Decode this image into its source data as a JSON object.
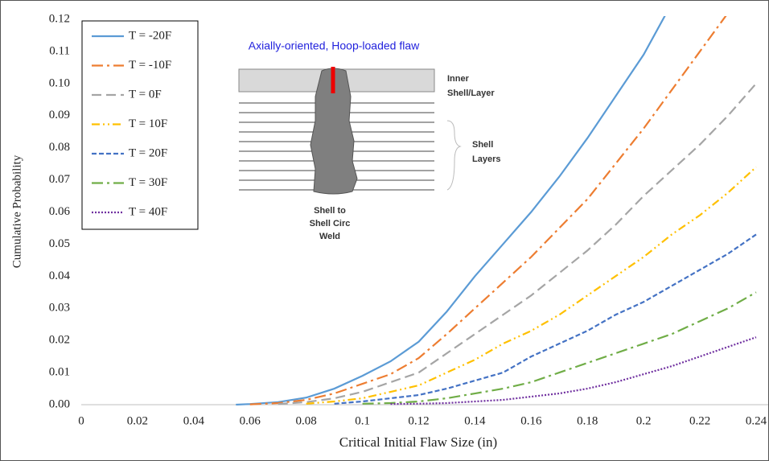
{
  "chart_data": {
    "type": "line",
    "xlabel": "Critical Initial Flaw Size (in)",
    "ylabel": "Cumulative Probability",
    "x": [
      0.055,
      0.06,
      0.07,
      0.08,
      0.09,
      0.1,
      0.11,
      0.12,
      0.13,
      0.14,
      0.15,
      0.16,
      0.17,
      0.18,
      0.19,
      0.2,
      0.21,
      0.22,
      0.23,
      0.24
    ],
    "series": [
      {
        "name": "T = -20F",
        "color": "#5b9bd5",
        "dash": "none",
        "values": [
          0,
          0.0002,
          0.0008,
          0.0022,
          0.005,
          0.009,
          0.0135,
          0.0196,
          0.029,
          0.04,
          0.05,
          0.06,
          0.071,
          0.083,
          0.096,
          0.109,
          0.125,
          null,
          null,
          null
        ]
      },
      {
        "name": "T = -10F",
        "color": "#ed7d31",
        "dash": "14,5,3,5",
        "values": [
          null,
          0.0001,
          0.0005,
          0.0015,
          0.0035,
          0.0065,
          0.0095,
          0.0145,
          0.022,
          0.03,
          0.038,
          0.046,
          0.055,
          0.064,
          0.075,
          0.086,
          0.098,
          0.11,
          0.122,
          null
        ]
      },
      {
        "name": "T = 0F",
        "color": "#a5a5a5",
        "dash": "12,6",
        "values": [
          null,
          null,
          0.0002,
          0.0008,
          0.002,
          0.004,
          0.007,
          0.01,
          0.016,
          0.022,
          0.028,
          0.034,
          0.041,
          0.048,
          0.056,
          0.065,
          0.073,
          0.081,
          0.09,
          0.1
        ]
      },
      {
        "name": "T = 10F",
        "color": "#ffc000",
        "dash": "10,4,2,4,2,4",
        "values": [
          null,
          null,
          null,
          0.0003,
          0.001,
          0.002,
          0.004,
          0.006,
          0.01,
          0.014,
          0.019,
          0.023,
          0.028,
          0.034,
          0.04,
          0.046,
          0.053,
          0.059,
          0.066,
          0.074
        ]
      },
      {
        "name": "T = 20F",
        "color": "#4472c4",
        "dash": "6,3",
        "values": [
          null,
          null,
          null,
          null,
          0.0003,
          0.001,
          0.002,
          0.003,
          0.005,
          0.0075,
          0.01,
          0.015,
          0.019,
          0.023,
          0.028,
          0.032,
          0.037,
          0.042,
          0.047,
          0.053
        ]
      },
      {
        "name": "T = 30F",
        "color": "#70ad47",
        "dash": "14,5,3,5",
        "values": [
          null,
          null,
          null,
          null,
          null,
          0.0003,
          0.0005,
          0.001,
          0.002,
          0.0035,
          0.005,
          0.007,
          0.01,
          0.013,
          0.016,
          0.019,
          0.022,
          0.026,
          0.03,
          0.035
        ]
      },
      {
        "name": "T = 40F",
        "color": "#7030a0",
        "dash": "2,2",
        "values": [
          null,
          null,
          null,
          null,
          null,
          null,
          0.0002,
          0.0003,
          0.0005,
          0.001,
          0.0015,
          0.0025,
          0.0035,
          0.005,
          0.007,
          0.0095,
          0.012,
          0.015,
          0.018,
          0.021
        ]
      }
    ],
    "xlim": [
      0,
      0.24
    ],
    "xticks": [
      0,
      0.02,
      0.04,
      0.06,
      0.08,
      0.1,
      0.12,
      0.14,
      0.16,
      0.18,
      0.2,
      0.22,
      0.24
    ],
    "ylim": [
      0,
      0.12
    ],
    "yticks": [
      {
        "value": 0,
        "label": "0.00"
      },
      0.01,
      0.02,
      0.03,
      0.04,
      0.05,
      0.06,
      0.07,
      0.08,
      0.09,
      {
        "value": 0.1,
        "label": "0.10"
      },
      0.11,
      0.12
    ],
    "grid": false,
    "legend": "upper left",
    "annotations": [
      {
        "lines": [
          "Axially-oriented, Hoop-loaded flaw"
        ]
      },
      {
        "lines": [
          "Inner",
          "Shell/Layer"
        ]
      },
      {
        "lines": [
          "Shell",
          "Layers"
        ]
      },
      {
        "lines": [
          "Shell to",
          "Shell Circ",
          "Weld"
        ]
      }
    ]
  }
}
